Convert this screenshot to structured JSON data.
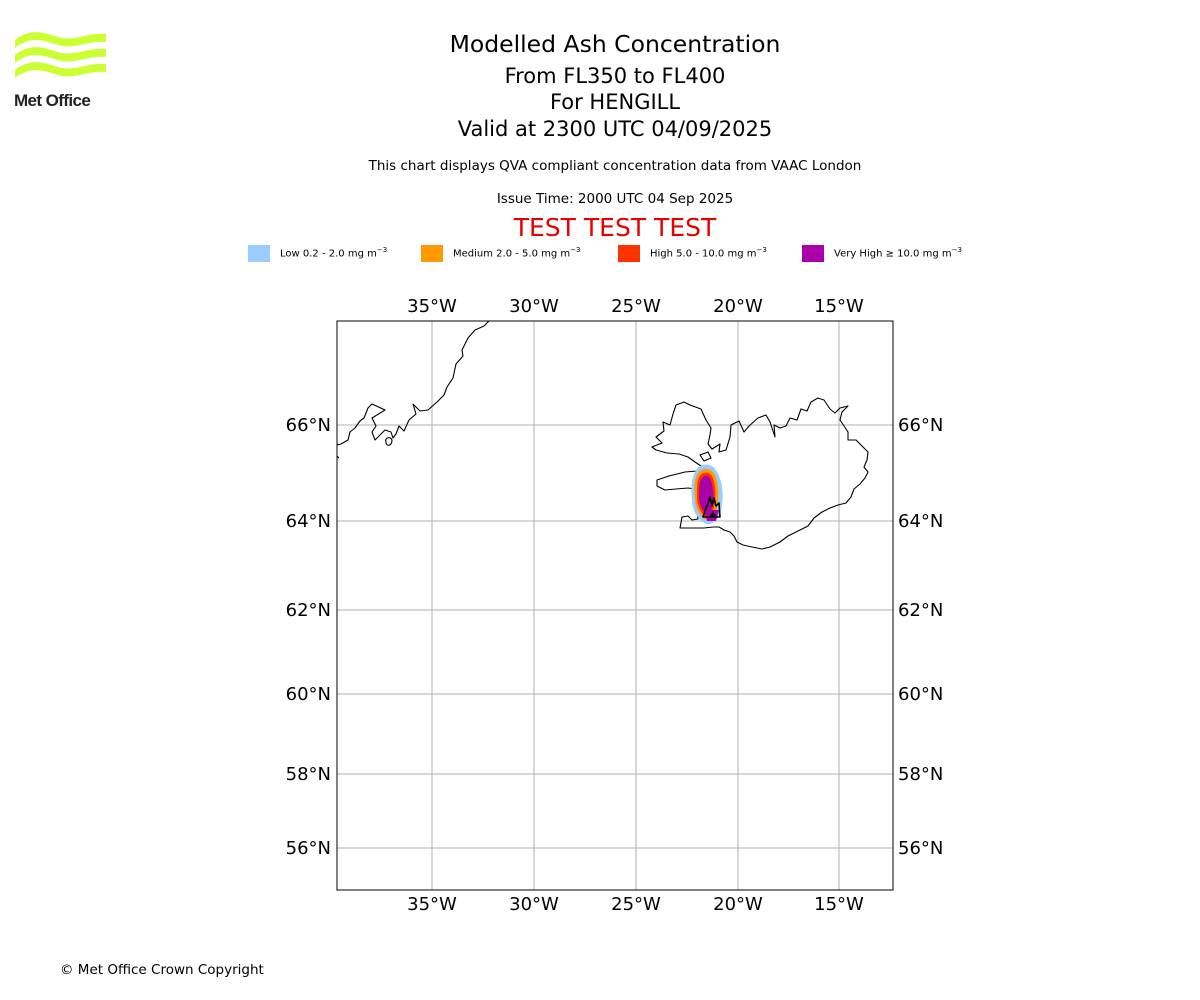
{
  "logo": {
    "text": "Met Office",
    "color": "#ccff33"
  },
  "header": {
    "title": "Modelled Ash Concentration",
    "level_range": "From FL350 to FL400",
    "volcano": "For HENGILL",
    "valid_time": "Valid at 2300 UTC 04/09/2025",
    "description": "This chart displays QVA compliant concentration data from VAAC London",
    "issue_time": "Issue Time: 2000 UTC 04 Sep 2025",
    "test_banner": "TEST TEST TEST"
  },
  "legend": [
    {
      "prefix": "Low 0.2 - 2.0 mg m",
      "color": "#99ccff"
    },
    {
      "prefix": "Medium 2.0 - 5.0 mg m",
      "color": "#ff9900"
    },
    {
      "prefix": "High 5.0 - 10.0 mg m",
      "color": "#ff3300"
    },
    {
      "prefix": "Very High ≥ 10.0 mg m",
      "color": "#aa00aa"
    }
  ],
  "legend_exponent": "−3",
  "map": {
    "lon_ticks": [
      "35°W",
      "30°W",
      "25°W",
      "20°W",
      "15°W"
    ],
    "lat_ticks": [
      "66°N",
      "64°N",
      "62°N",
      "60°N",
      "58°N",
      "56°N"
    ],
    "grid_color": "#b0b0b0",
    "coast_color": "#000000"
  },
  "footer": {
    "copyright": "© Met Office Crown Copyright"
  }
}
